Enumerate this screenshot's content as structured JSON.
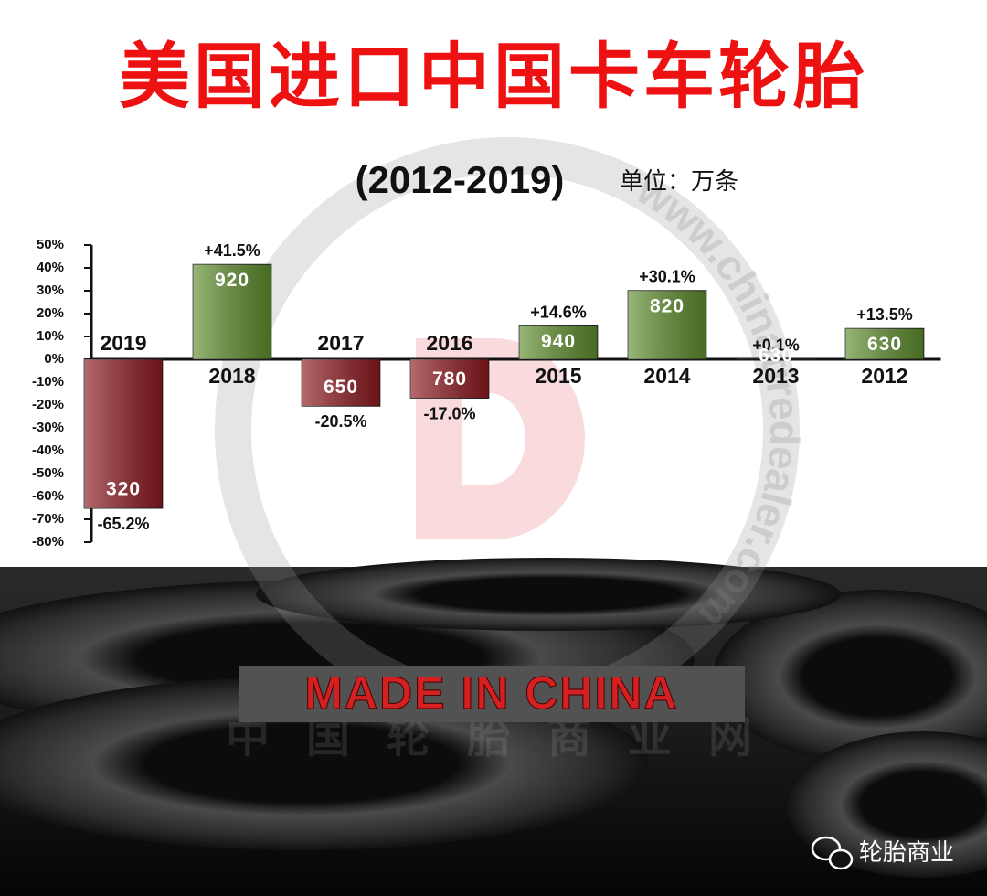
{
  "title": "美国进口中国卡车轮胎",
  "banner": "MADE IN CHINA",
  "footer": "轮胎商业",
  "watermark": "www.chinatiredealer.com",
  "watermark_cn": "中国轮胎商业网",
  "chart_data": {
    "type": "bar",
    "subtitle": "(2012-2019)",
    "unit_label": "单位：万条",
    "categories": [
      "2019",
      "2018",
      "2017",
      "2016",
      "2015",
      "2014",
      "2013",
      "2012"
    ],
    "values": [
      -65.2,
      41.5,
      -20.5,
      -17.0,
      14.6,
      30.1,
      0.1,
      13.5
    ],
    "value_labels": [
      "-65.2%",
      "+41.5%",
      "-20.5%",
      "-17.0%",
      "+14.6%",
      "+30.1%",
      "+0.1%",
      "+13.5%"
    ],
    "volumes": [
      320,
      920,
      650,
      780,
      940,
      820,
      630,
      630
    ],
    "positive_color": "#5f8f2e",
    "negative_color": "#8e1a20",
    "ylim": [
      -80,
      50
    ],
    "yticks": [
      {
        "value": 50,
        "label": "50%"
      },
      {
        "value": 40,
        "label": "40%"
      },
      {
        "value": 30,
        "label": "30%"
      },
      {
        "value": 20,
        "label": "20%"
      },
      {
        "value": 10,
        "label": "10%"
      },
      {
        "value": 0,
        "label": "0%"
      },
      {
        "value": -10,
        "label": "-10%"
      },
      {
        "value": -20,
        "label": "-20%"
      },
      {
        "value": -30,
        "label": "-30%"
      },
      {
        "value": -40,
        "label": "-40%"
      },
      {
        "value": -50,
        "label": "-50%"
      },
      {
        "value": -60,
        "label": "-60%"
      },
      {
        "value": -70,
        "label": "-70%"
      },
      {
        "value": -80,
        "label": "-80%"
      }
    ]
  }
}
